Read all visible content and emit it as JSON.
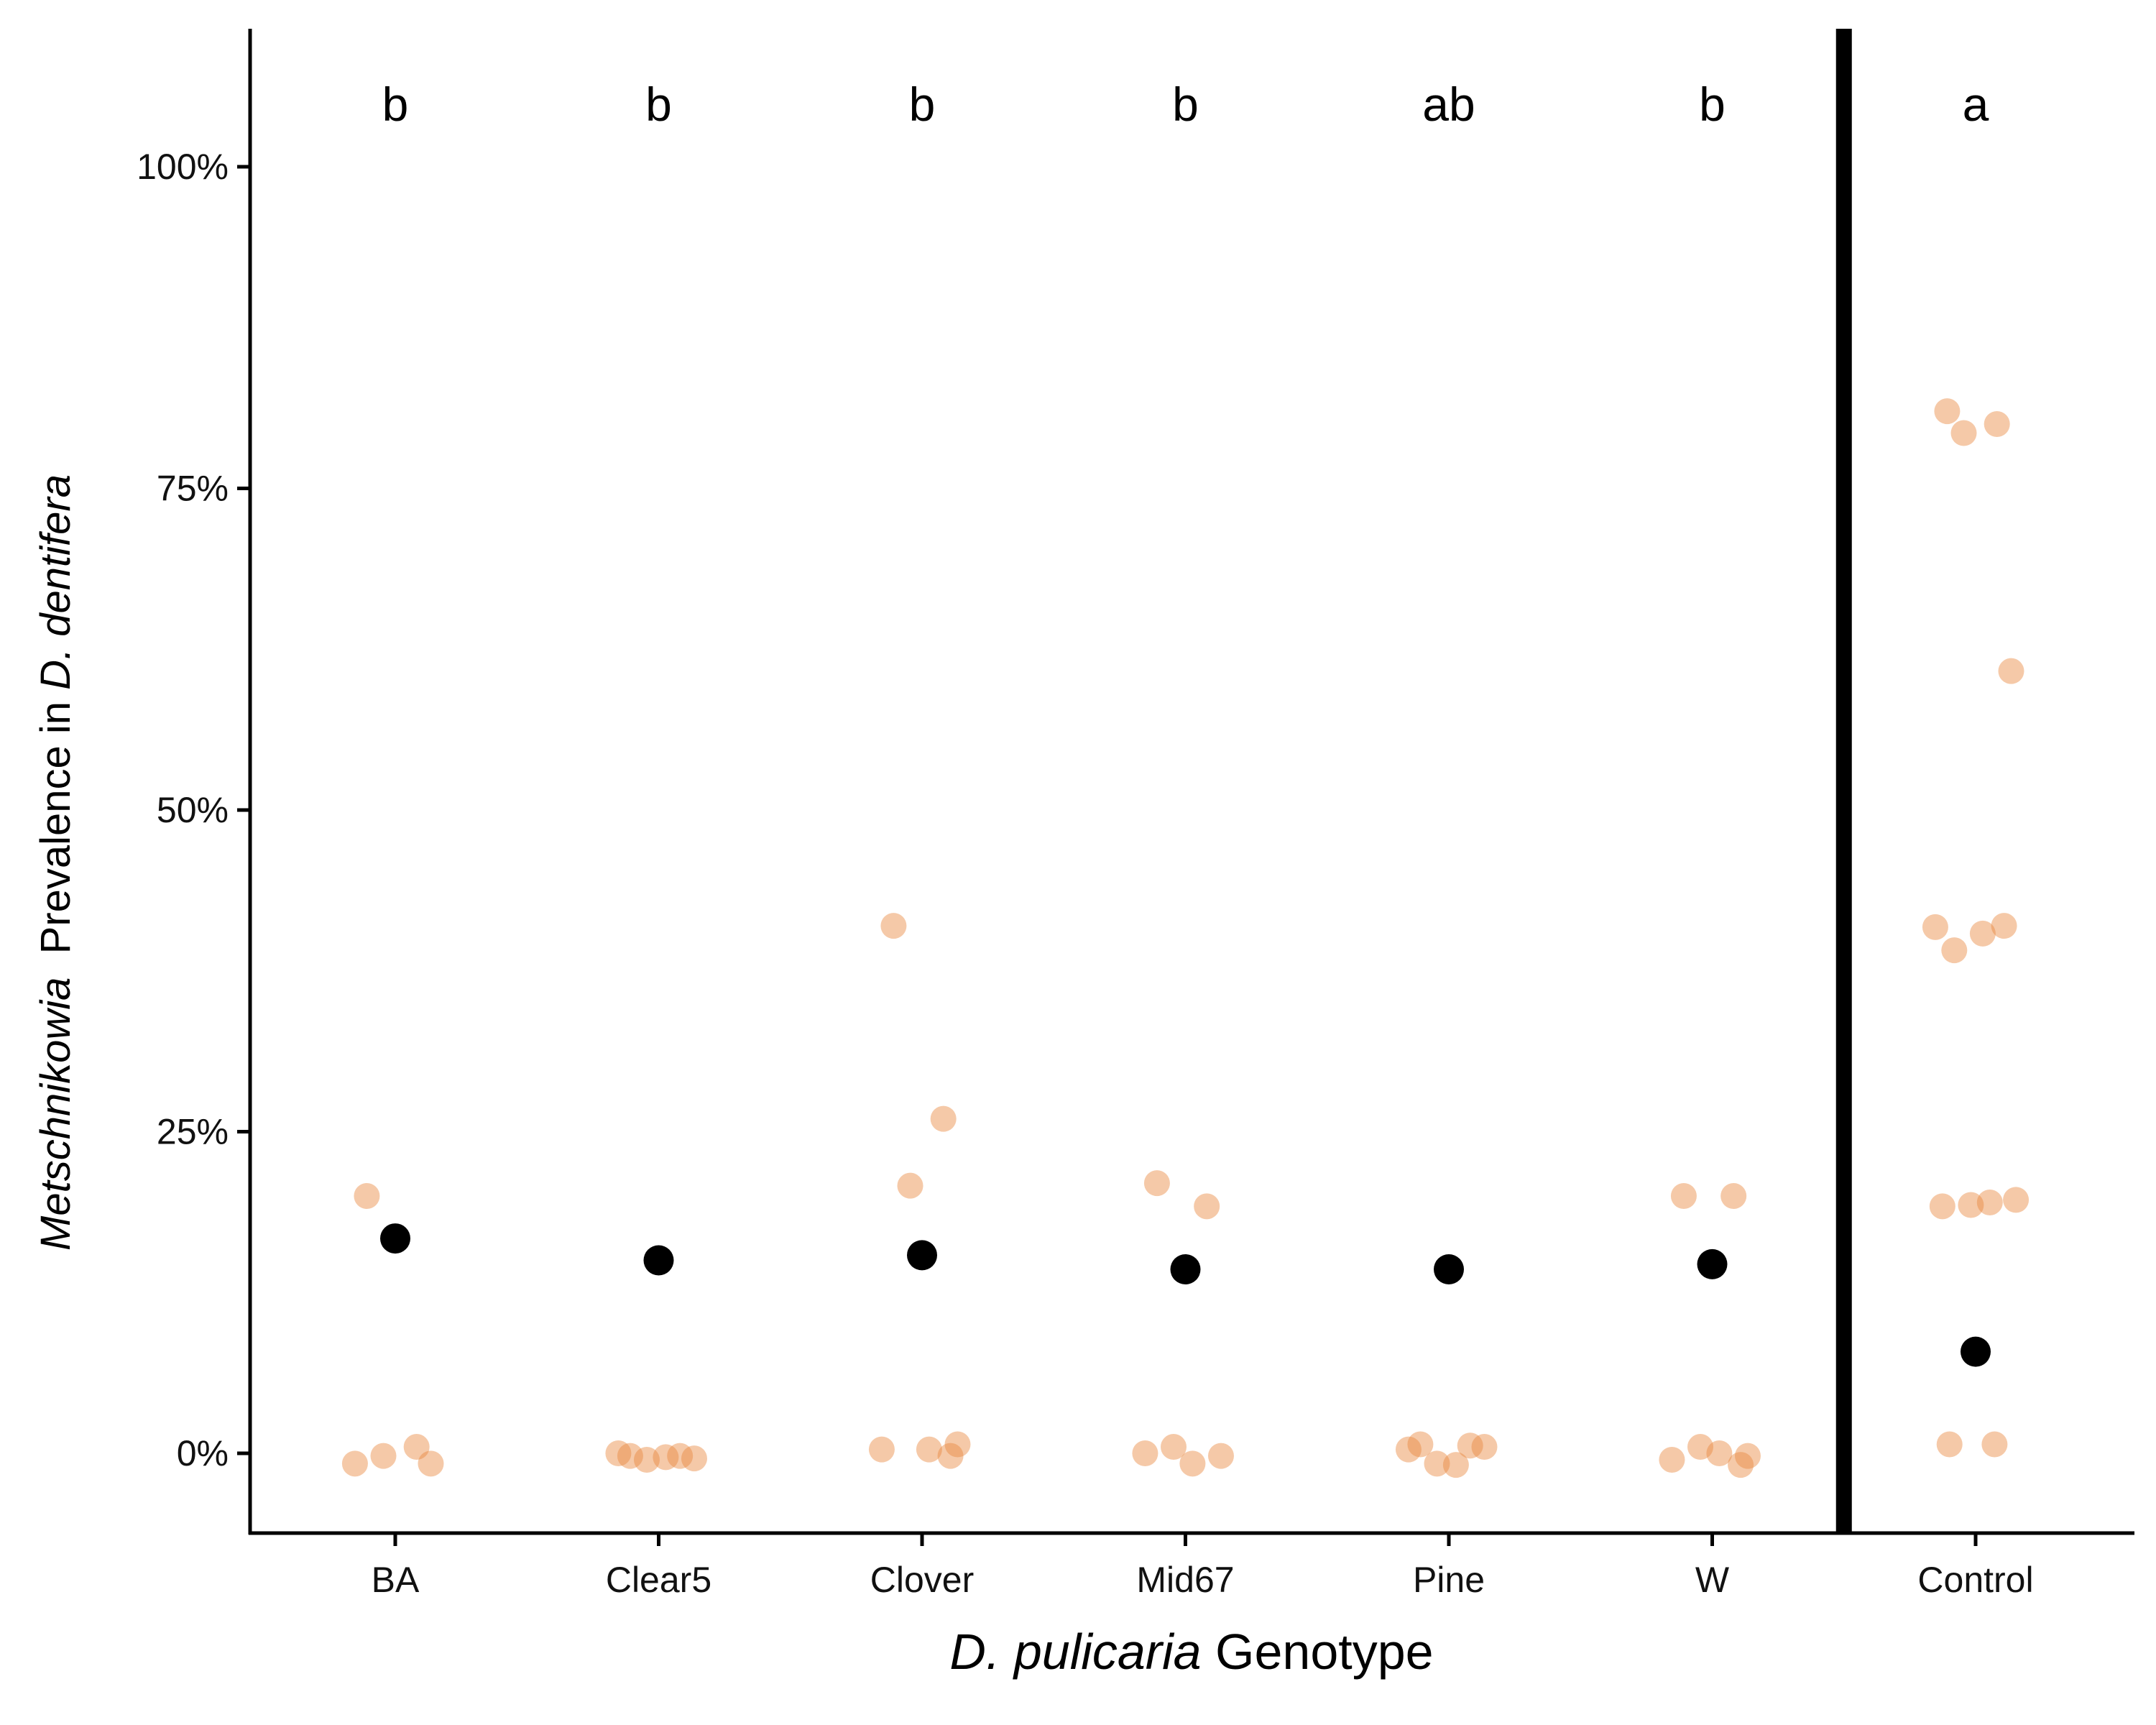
{
  "chart_data": {
    "type": "scatter",
    "title": "",
    "xlabel": {
      "italic": "D. pulicaria",
      "plain": " Genotype"
    },
    "ylabel": {
      "italic1": "Metschnikowia",
      "plain": "  Prevalence in ",
      "italic2": "D. dentifera"
    },
    "ylim": [
      -0.06,
      1.1
    ],
    "y_ticks": [
      {
        "value": 0,
        "label": "0%"
      },
      {
        "value": 0.25,
        "label": "25%"
      },
      {
        "value": 0.5,
        "label": "50%"
      },
      {
        "value": 0.75,
        "label": "75%"
      },
      {
        "value": 1.0,
        "label": "100%"
      }
    ],
    "categories": [
      "BA",
      "Clear5",
      "Clover",
      "Mid67",
      "Pine",
      "W",
      "Control"
    ],
    "significance_letters": [
      "b",
      "b",
      "b",
      "b",
      "ab",
      "b",
      "a"
    ],
    "separator_after": "W",
    "grid": false,
    "colors": {
      "replicate": "#e8883f",
      "mean": "#000000",
      "axis": "#000000"
    },
    "series": [
      {
        "role": "replicates",
        "points": [
          {
            "category": "BA",
            "values": [
              0.2,
              0.005,
              -0.002,
              -0.008,
              -0.008
            ]
          },
          {
            "category": "Clear5",
            "values": [
              -0.002,
              -0.002,
              -0.005,
              -0.004,
              0.0,
              -0.003
            ]
          },
          {
            "category": "Clover",
            "values": [
              0.41,
              0.26,
              0.208,
              0.007,
              0.003,
              0.003,
              -0.002
            ]
          },
          {
            "category": "Mid67",
            "values": [
              0.21,
              0.192,
              0.005,
              -0.002,
              0.0,
              -0.008
            ]
          },
          {
            "category": "Pine",
            "values": [
              0.007,
              0.006,
              -0.008,
              0.005,
              0.003,
              -0.009
            ]
          },
          {
            "category": "W",
            "values": [
              0.2,
              0.2,
              0.005,
              -0.002,
              -0.005,
              0.0,
              -0.009
            ]
          },
          {
            "category": "Control",
            "values": [
              0.81,
              0.8,
              0.793,
              0.608,
              0.409,
              0.404,
              0.41,
              0.391,
              0.195,
              0.192,
              0.197,
              0.193,
              0.007,
              0.007
            ]
          }
        ]
      },
      {
        "role": "means",
        "points": [
          {
            "category": "BA",
            "value": 0.167
          },
          {
            "category": "Clear5",
            "value": 0.15
          },
          {
            "category": "Clover",
            "value": 0.154
          },
          {
            "category": "Mid67",
            "value": 0.143
          },
          {
            "category": "Pine",
            "value": 0.143
          },
          {
            "category": "W",
            "value": 0.147
          },
          {
            "category": "Control",
            "value": 0.079
          }
        ]
      }
    ]
  }
}
